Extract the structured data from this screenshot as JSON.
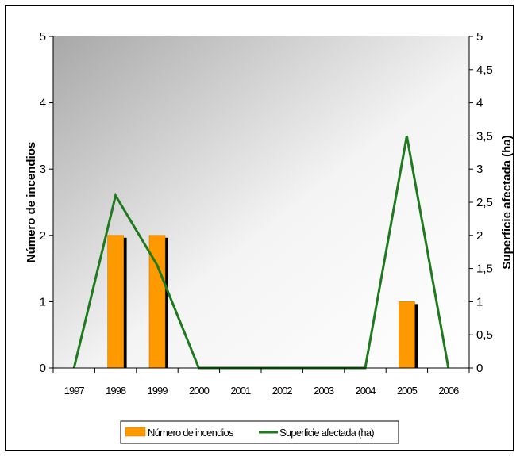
{
  "chart_data": {
    "type": "bar",
    "categories": [
      "1997",
      "1998",
      "1999",
      "2000",
      "2001",
      "2002",
      "2003",
      "2004",
      "2005",
      "2006"
    ],
    "series": [
      {
        "name": "Número de incendios",
        "kind": "bar",
        "axis": "left",
        "color": "#ff9900",
        "values": [
          0,
          2,
          2,
          0,
          0,
          0,
          0,
          0,
          1,
          0
        ]
      },
      {
        "name": "Superficie afectada (ha)",
        "kind": "line",
        "axis": "right",
        "color": "#1f7a1f",
        "values": [
          0,
          2.6,
          1.55,
          0,
          0,
          0,
          0,
          0,
          3.5,
          0
        ]
      }
    ],
    "ylabel": "Número de incendios",
    "y2label": "Superficie afectada (ha)",
    "ylim": [
      0,
      5
    ],
    "y2lim": [
      0,
      5
    ],
    "yticks": [
      "0",
      "1",
      "2",
      "3",
      "4",
      "5"
    ],
    "y2ticks": [
      "0",
      "0,5",
      "1",
      "1,5",
      "2",
      "2,5",
      "3",
      "3,5",
      "4",
      "4,5",
      "5"
    ],
    "legend_position": "bottom",
    "grid": false
  }
}
